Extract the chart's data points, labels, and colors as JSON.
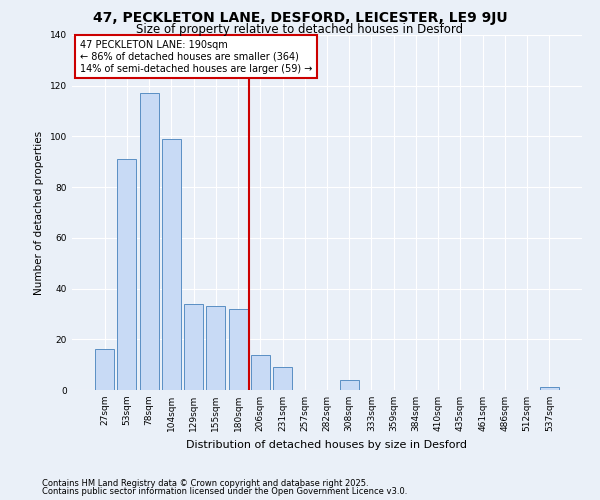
{
  "title1": "47, PECKLETON LANE, DESFORD, LEICESTER, LE9 9JU",
  "title2": "Size of property relative to detached houses in Desford",
  "xlabel": "Distribution of detached houses by size in Desford",
  "ylabel": "Number of detached properties",
  "categories": [
    "27sqm",
    "53sqm",
    "78sqm",
    "104sqm",
    "129sqm",
    "155sqm",
    "180sqm",
    "206sqm",
    "231sqm",
    "257sqm",
    "282sqm",
    "308sqm",
    "333sqm",
    "359sqm",
    "384sqm",
    "410sqm",
    "435sqm",
    "461sqm",
    "486sqm",
    "512sqm",
    "537sqm"
  ],
  "values": [
    16,
    91,
    117,
    99,
    34,
    33,
    32,
    14,
    9,
    0,
    0,
    4,
    0,
    0,
    0,
    0,
    0,
    0,
    0,
    0,
    1
  ],
  "bar_color": "#c8daf5",
  "bar_edge_color": "#5a8fc4",
  "marker_label": "47 PECKLETON LANE: 190sqm",
  "annotation_line1": "← 86% of detached houses are smaller (364)",
  "annotation_line2": "14% of semi-detached houses are larger (59) →",
  "vline_color": "#cc0000",
  "annotation_box_edge_color": "#cc0000",
  "footnote1": "Contains HM Land Registry data © Crown copyright and database right 2025.",
  "footnote2": "Contains public sector information licensed under the Open Government Licence v3.0.",
  "ylim": [
    0,
    140
  ],
  "yticks": [
    0,
    20,
    40,
    60,
    80,
    100,
    120,
    140
  ],
  "background_color": "#eaf0f8",
  "grid_color": "#ffffff",
  "title1_fontsize": 10,
  "title2_fontsize": 8.5,
  "vline_index": 6.0
}
